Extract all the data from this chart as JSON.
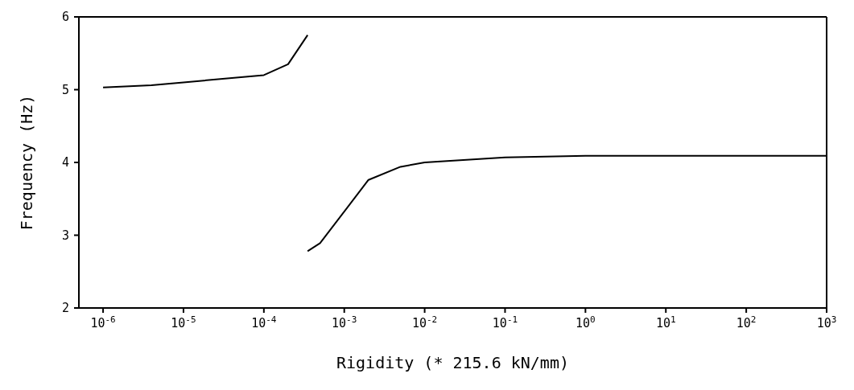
{
  "chart_data": {
    "type": "line",
    "xlabel": "Rigidity (* 215.6 kN/mm)",
    "ylabel": "Frequency (Hz)",
    "log": "x",
    "marker": "none",
    "line_style": "solid",
    "xlim": [
      5e-07,
      1000
    ],
    "ylim": [
      2,
      6
    ],
    "yticks": [
      2,
      3,
      4,
      5,
      6
    ],
    "xticks": [
      {
        "value": 1e-06,
        "label": "10$^{-6}$"
      },
      {
        "value": 1e-05,
        "label": "10$^{-5}$"
      },
      {
        "value": 0.0001,
        "label": "10$^{-4}$"
      },
      {
        "value": 0.001,
        "label": "10$^{-3}$"
      },
      {
        "value": 0.01,
        "label": "10$^{-2}$"
      },
      {
        "value": 0.1,
        "label": "10$^{-1}$"
      },
      {
        "value": 1,
        "label": "10$^{0}$"
      },
      {
        "value": 10,
        "label": "10$^{1}$"
      },
      {
        "value": 100,
        "label": "10$^{2}$"
      },
      {
        "value": 1000,
        "label": "10$^{3}$"
      }
    ],
    "series": [
      {
        "color": "#000000",
        "x": [
          1e-06,
          4e-06,
          1e-05,
          0.0001,
          0.0002,
          0.00035
        ],
        "values": [
          5.03,
          5.06,
          5.1,
          5.2,
          5.35,
          5.75
        ]
      },
      {
        "color": "#000000",
        "x": [
          0.00035,
          0.0005,
          0.002,
          0.005,
          0.01,
          0.1,
          1,
          1000
        ],
        "values": [
          2.78,
          2.89,
          3.76,
          3.94,
          4.0,
          4.07,
          4.09,
          4.09
        ]
      }
    ]
  }
}
